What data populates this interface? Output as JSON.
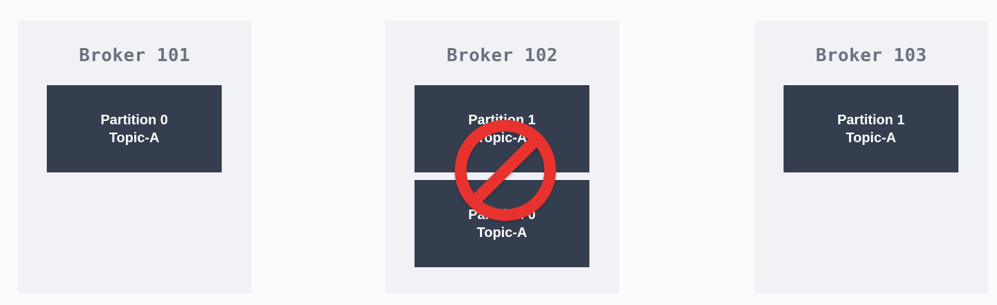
{
  "brokers": [
    {
      "title": "Broker 101",
      "partitions": [
        {
          "partition": "Partition 0",
          "topic": "Topic-A"
        }
      ]
    },
    {
      "title": "Broker 102",
      "partitions": [
        {
          "partition": "Partition 1",
          "topic": "Topic-A"
        },
        {
          "partition": "Partition 0",
          "topic": "Topic-A"
        }
      ],
      "prohibited": true
    },
    {
      "title": "Broker 103",
      "partitions": [
        {
          "partition": "Partition 1",
          "topic": "Topic-A"
        }
      ]
    }
  ],
  "colors": {
    "background": "#fbfbfc",
    "broker_panel": "#f1f2f5",
    "broker_title": "#6b7180",
    "partition_box": "#353e4f",
    "partition_text": "#ffffff",
    "prohibited_sign": "#e8322f"
  },
  "icons": {
    "prohibited": "no-entry-sign-icon"
  }
}
